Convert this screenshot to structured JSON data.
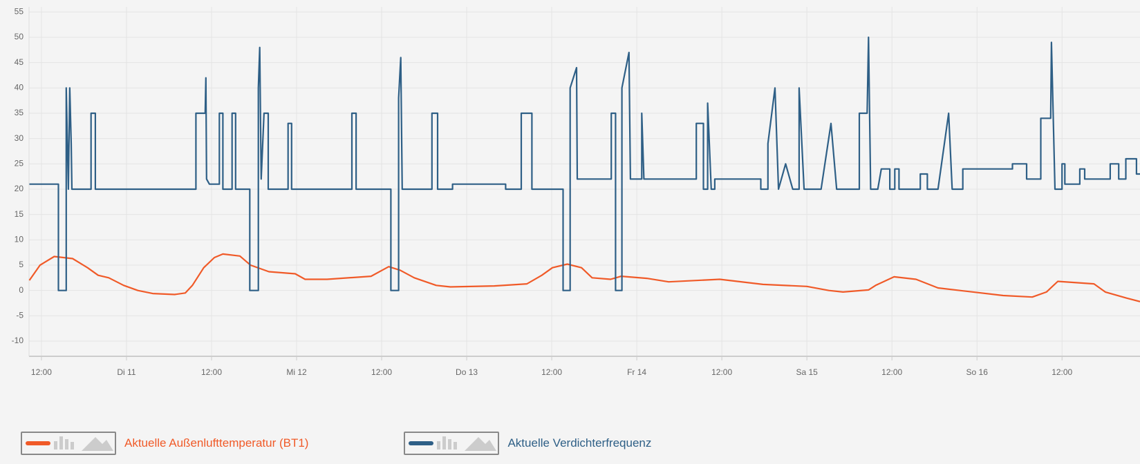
{
  "chart_data": {
    "type": "line",
    "xlim": [
      10.25,
      167
    ],
    "ylim": [
      -13,
      56
    ],
    "xticks": [
      {
        "value": 12,
        "label": "12:00"
      },
      {
        "value": 24,
        "label": "Di 11"
      },
      {
        "value": 36,
        "label": "12:00"
      },
      {
        "value": 48,
        "label": "Mi 12"
      },
      {
        "value": 60,
        "label": "12:00"
      },
      {
        "value": 72,
        "label": "Do 13"
      },
      {
        "value": 84,
        "label": "12:00"
      },
      {
        "value": 96,
        "label": "Fr 14"
      },
      {
        "value": 108,
        "label": "12:00"
      },
      {
        "value": 120,
        "label": "Sa 15"
      },
      {
        "value": 132,
        "label": "12:00"
      },
      {
        "value": 144,
        "label": "So 16"
      },
      {
        "value": 156,
        "label": "12:00"
      }
    ],
    "yticks": [
      -10,
      -5,
      0,
      5,
      10,
      15,
      20,
      25,
      30,
      35,
      40,
      45,
      50,
      55
    ],
    "grid": true,
    "series": [
      {
        "name": "Aktuelle Außenlufttemperatur (BT1)",
        "color": "#f05a28",
        "x": [
          10.3,
          11.8,
          13.8,
          16.4,
          18.5,
          20,
          21.5,
          23.6,
          25.6,
          27.7,
          30.8,
          32.3,
          33.3,
          34.9,
          36.4,
          37.6,
          40,
          41.5,
          44.1,
          47.8,
          49.2,
          52.3,
          58.5,
          61,
          62.6,
          64.6,
          67.7,
          69.7,
          75.9,
          80.5,
          82.6,
          84.1,
          86.2,
          88.2,
          89.7,
          92.3,
          93.8,
          97.4,
          100.5,
          107.7,
          113.8,
          120,
          123.1,
          125.1,
          128.7,
          129.7,
          132.3,
          135.4,
          138.5,
          147.7,
          151.8,
          153.8,
          155.4,
          160.5,
          162.1,
          165.1,
          167
        ],
        "values": [
          2,
          5,
          6.7,
          6.3,
          4.5,
          3,
          2.5,
          1,
          0,
          -0.6,
          -0.8,
          -0.5,
          1,
          4.5,
          6.5,
          7.2,
          6.8,
          5,
          3.7,
          3.3,
          2.2,
          2.2,
          2.8,
          4.7,
          4,
          2.5,
          1,
          0.7,
          0.9,
          1.3,
          3,
          4.5,
          5.2,
          4.5,
          2.5,
          2.2,
          2.8,
          2.4,
          1.7,
          2.2,
          1.2,
          0.8,
          0,
          -0.3,
          0.1,
          1,
          2.7,
          2.2,
          0.5,
          -1,
          -1.3,
          -0.3,
          1.8,
          1.3,
          -0.3,
          -1.5,
          -2.2
        ]
      },
      {
        "name": "Aktuelle Verdichterfrequenz",
        "color": "#2e5f86",
        "x": [
          10.3,
          14.4,
          14.4,
          15.5,
          15.5,
          15.8,
          16.0,
          16.2,
          16.3,
          19.0,
          19.0,
          19.6,
          19.6,
          33.8,
          33.8,
          35.1,
          35.2,
          35.3,
          35.7,
          37.1,
          37.1,
          37.6,
          37.6,
          38.9,
          38.9,
          39.4,
          39.4,
          41.4,
          41.4,
          42.6,
          42.6,
          42.8,
          43.0,
          43.4,
          44.0,
          44.0,
          46.8,
          46.8,
          47.3,
          47.3,
          55.8,
          55.8,
          56.4,
          56.4,
          61.3,
          61.3,
          62.4,
          62.4,
          62.7,
          62.9,
          67.1,
          67.1,
          67.9,
          67.9,
          70.0,
          70.0,
          77.5,
          77.5,
          79.7,
          79.7,
          81.2,
          81.2,
          85.6,
          85.6,
          86.6,
          86.6,
          87.5,
          87.6,
          92.4,
          92.4,
          93.0,
          93.0,
          93.9,
          93.9,
          94.9,
          95.1,
          96.7,
          96.7,
          97.0,
          104.4,
          104.4,
          105.4,
          105.4,
          106.0,
          106.0,
          106.5,
          107.0,
          107.0,
          113.5,
          113.5,
          114.5,
          114.5,
          115.5,
          116.0,
          117,
          118,
          118.9,
          118.9,
          119.6,
          122,
          123.4,
          124.2,
          127.4,
          127.4,
          128.5,
          128.7,
          129.0,
          130,
          130.5,
          131.7,
          131.7,
          132.4,
          132.4,
          133,
          133,
          136,
          136,
          137,
          137,
          138.5,
          140,
          140.5,
          142,
          142,
          149,
          149,
          151,
          151,
          153,
          153,
          154.4,
          154.5,
          155,
          156,
          156,
          156.4,
          156.4,
          158.5,
          158.5,
          159.2,
          159.2,
          162.8,
          162.8,
          164,
          164,
          165,
          165,
          166.5,
          166.5,
          167
        ],
        "values": [
          21,
          21,
          0,
          0,
          40,
          20,
          40,
          29,
          20,
          20,
          35,
          35,
          20,
          20,
          35,
          35,
          42,
          22,
          21,
          21,
          35,
          35,
          20,
          20,
          35,
          35,
          20,
          20,
          0,
          0,
          40,
          48,
          22,
          35,
          35,
          20,
          20,
          33,
          33,
          20,
          20,
          35,
          35,
          20,
          20,
          0,
          0,
          38,
          46,
          20,
          20,
          35,
          35,
          20,
          20,
          21,
          21,
          20,
          20,
          35,
          35,
          20,
          20,
          0,
          0,
          40,
          44,
          22,
          22,
          35,
          35,
          0,
          0,
          40,
          47,
          22,
          22,
          35,
          22,
          22,
          33,
          33,
          20,
          20,
          37,
          20,
          20,
          22,
          22,
          20,
          20,
          29,
          40,
          20,
          25,
          20,
          20,
          40,
          20,
          20,
          33,
          20,
          20,
          35,
          35,
          50,
          20,
          20,
          24,
          24,
          20,
          20,
          24,
          24,
          20,
          20,
          23,
          23,
          20,
          20,
          35,
          20,
          20,
          24,
          24,
          25,
          25,
          22,
          22,
          34,
          34,
          49,
          20,
          20,
          25,
          25,
          21,
          21,
          24,
          24,
          22,
          22,
          25,
          25,
          22,
          22,
          26,
          26,
          23,
          23
        ]
      }
    ]
  }
}
